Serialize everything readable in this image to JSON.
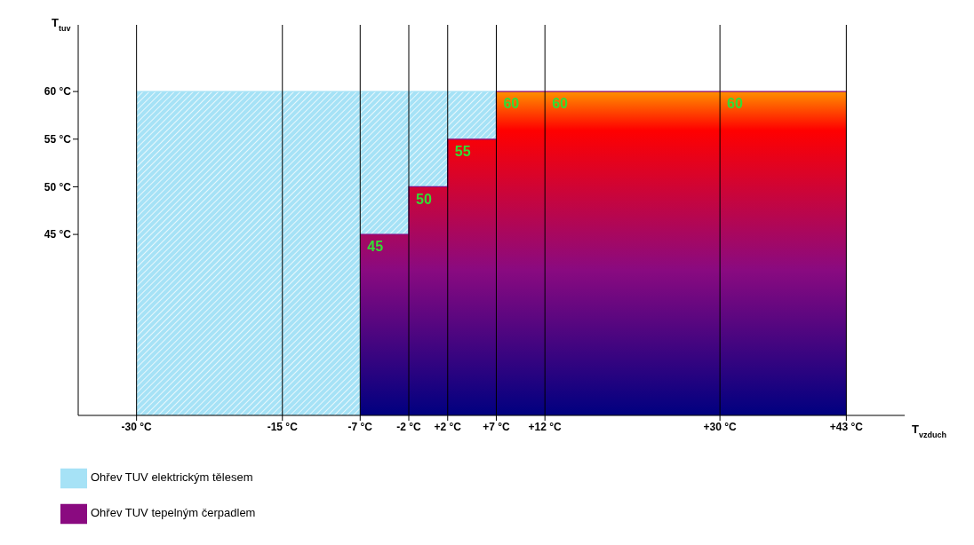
{
  "chart_data": {
    "type": "area",
    "xlabel": "T$_{vzduch}$",
    "ylabel": "T$_{tuv}$",
    "xlim": [
      -36,
      49
    ],
    "ylim": [
      26,
      67
    ],
    "xticks": [
      {
        "value": -30,
        "label": "-30 °C"
      },
      {
        "value": -15,
        "label": "-15 °C"
      },
      {
        "value": -7,
        "label": "-7 °C"
      },
      {
        "value": -2,
        "label": "-2 °C"
      },
      {
        "value": 2,
        "label": "+2 °C"
      },
      {
        "value": 7,
        "label": "+7 °C"
      },
      {
        "value": 12,
        "label": "+12 °C"
      },
      {
        "value": 30,
        "label": "+30 °C"
      },
      {
        "value": 43,
        "label": "+43 °C"
      }
    ],
    "yticks": [
      {
        "value": 45,
        "label": "45 °C"
      },
      {
        "value": 50,
        "label": "50 °C"
      },
      {
        "value": 55,
        "label": "55 °C"
      },
      {
        "value": 60,
        "label": "60 °C"
      }
    ],
    "series": [
      {
        "name": "Ohřev TUV elektrickým tělesem",
        "color": "#a6e2f6",
        "x": [
          -30,
          7
        ],
        "values": [
          60,
          60
        ]
      },
      {
        "name": "Ohřev TUV tepelným čerpadlem",
        "color": "#8a0a80",
        "x": [
          -7,
          -2,
          -2,
          2,
          2,
          7,
          7,
          12,
          30,
          43
        ],
        "values": [
          45,
          45,
          50,
          50,
          55,
          55,
          60,
          60,
          60,
          60
        ],
        "value_labels": [
          "45",
          null,
          "50",
          null,
          "55",
          null,
          "60",
          "60",
          "60",
          null
        ]
      }
    ],
    "grid": "x",
    "legend": "bottom left",
    "line_style": "solid"
  }
}
